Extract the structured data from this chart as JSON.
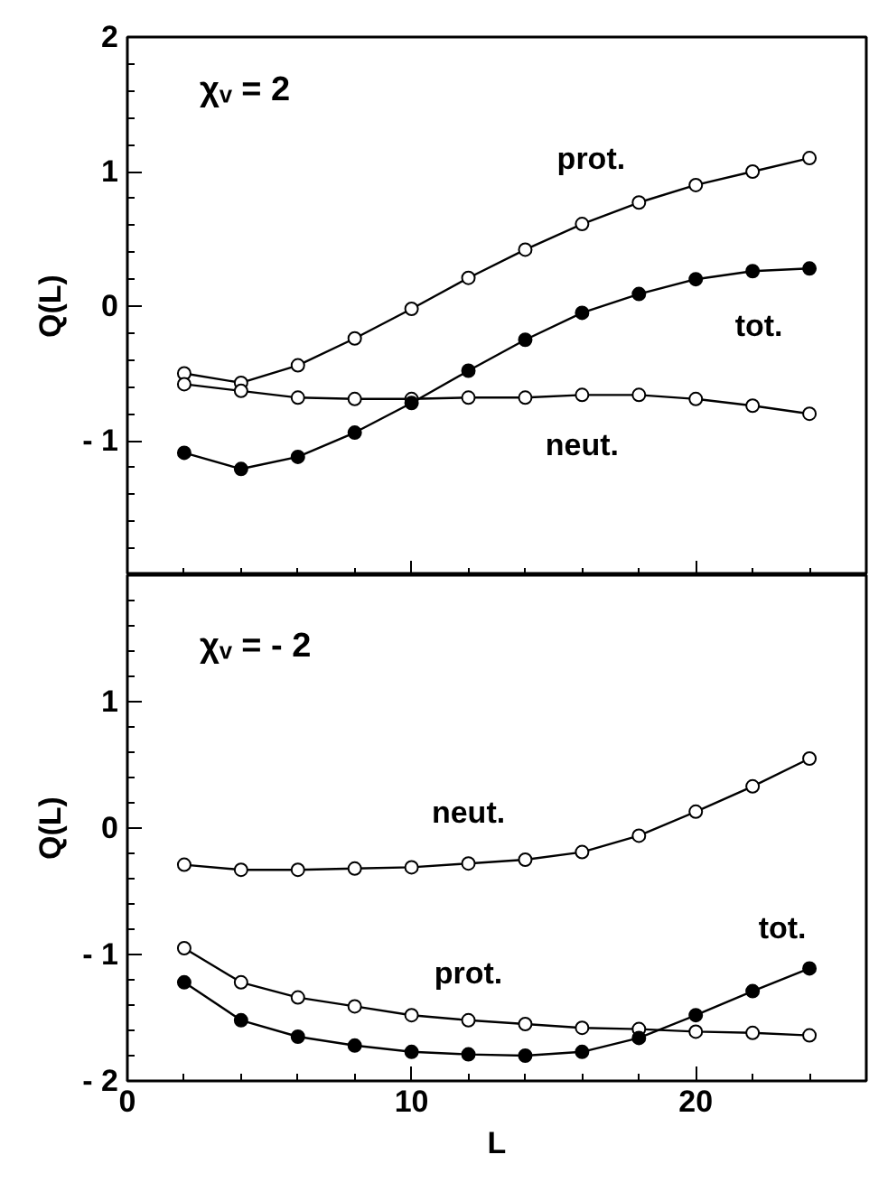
{
  "chart_data": [
    {
      "type": "line",
      "ylabel": "Q(L)",
      "x": [
        2,
        4,
        6,
        8,
        10,
        12,
        14,
        16,
        18,
        20,
        22,
        24
      ],
      "xlim": [
        0,
        26
      ],
      "xticks": [
        {
          "value": 0,
          "label": null
        },
        {
          "value": 10,
          "label": null
        },
        {
          "value": 20,
          "label": null
        }
      ],
      "ylim": [
        -2,
        2
      ],
      "yticks": [
        {
          "value": -2,
          "label": null
        },
        {
          "value": -1,
          "label": "- 1"
        },
        0,
        1,
        2
      ],
      "tick_labels": "y",
      "marker": "circle",
      "line_style": "solid",
      "grid": false,
      "series": [
        {
          "name": "prot.",
          "color": "#ffffff",
          "values": [
            -0.5,
            -0.57,
            -0.44,
            -0.24,
            -0.02,
            0.21,
            0.42,
            0.61,
            0.77,
            0.9,
            1.0,
            1.1
          ]
        },
        {
          "name": "tot.",
          "color": "#000000",
          "values": [
            -1.09,
            -1.21,
            -1.12,
            -0.94,
            -0.72,
            -0.48,
            -0.25,
            -0.05,
            0.09,
            0.2,
            0.26,
            0.28
          ]
        },
        {
          "name": "neut.",
          "color": "#ffffff",
          "values": [
            -0.58,
            -0.63,
            -0.68,
            -0.69,
            -0.69,
            -0.68,
            -0.68,
            -0.66,
            -0.66,
            -0.69,
            -0.74,
            -0.8
          ]
        }
      ],
      "annotations": [
        "χᵥ = 2"
      ]
    },
    {
      "type": "line",
      "ylabel": "Q(L)",
      "xlabel": "L",
      "x": [
        2,
        4,
        6,
        8,
        10,
        12,
        14,
        16,
        18,
        20,
        22,
        24
      ],
      "xlim": [
        0,
        26
      ],
      "xticks": [
        0,
        10,
        20
      ],
      "ylim": [
        -2,
        2
      ],
      "yticks": [
        {
          "value": -2,
          "label": "- 2"
        },
        {
          "value": -1,
          "label": "- 1"
        },
        0,
        1,
        {
          "value": 2,
          "label": null
        }
      ],
      "marker": "circle",
      "line_style": "solid",
      "grid": false,
      "series": [
        {
          "name": "neut.",
          "color": "#ffffff",
          "values": [
            -0.29,
            -0.33,
            -0.33,
            -0.32,
            -0.31,
            -0.28,
            -0.25,
            -0.19,
            -0.06,
            0.13,
            0.33,
            0.55
          ]
        },
        {
          "name": "prot.",
          "color": "#ffffff",
          "values": [
            -0.95,
            -1.22,
            -1.34,
            -1.41,
            -1.48,
            -1.52,
            -1.55,
            -1.58,
            -1.59,
            -1.61,
            -1.62,
            -1.64
          ]
        },
        {
          "name": "tot.",
          "color": "#000000",
          "values": [
            -1.22,
            -1.52,
            -1.65,
            -1.72,
            -1.77,
            -1.79,
            -1.8,
            -1.77,
            -1.66,
            -1.48,
            -1.29,
            -1.11
          ]
        }
      ],
      "annotations": [
        "χᵥ = - 2"
      ]
    }
  ]
}
